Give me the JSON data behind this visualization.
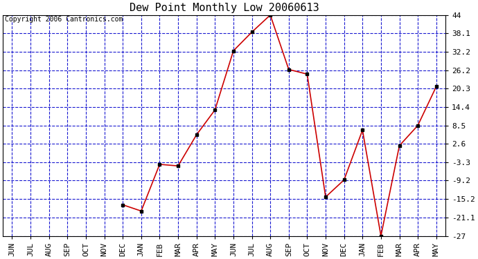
{
  "title": "Dew Point Monthly Low 20060613",
  "copyright": "Copyright 2006 Cantronics.com",
  "x_labels": [
    "JUN",
    "JUL",
    "AUG",
    "SEP",
    "OCT",
    "NOV",
    "DEC",
    "JAN",
    "FEB",
    "MAR",
    "APR",
    "MAY",
    "JUN",
    "JUL",
    "AUG",
    "SEP",
    "OCT",
    "NOV",
    "DEC",
    "JAN",
    "FEB",
    "MAR",
    "APR",
    "MAY"
  ],
  "y_values": [
    null,
    null,
    null,
    null,
    null,
    null,
    -17.0,
    -19.0,
    -4.0,
    -4.5,
    5.5,
    13.5,
    32.5,
    38.5,
    44.0,
    26.5,
    25.0,
    -14.5,
    -9.0,
    7.0,
    -27.0,
    2.0,
    8.5,
    21.0
  ],
  "ylim_min": -27.0,
  "ylim_max": 44.0,
  "yticks": [
    -27.0,
    -21.1,
    -15.2,
    -9.2,
    -3.3,
    2.6,
    8.5,
    14.4,
    20.3,
    26.2,
    32.2,
    38.1,
    44.0
  ],
  "line_color": "#cc0000",
  "marker_color": "#000000",
  "bg_color": "#ffffff",
  "plot_bg_color": "#ffffff",
  "grid_color": "#0000cc",
  "title_fontsize": 11,
  "copyright_fontsize": 7,
  "tick_fontsize": 8
}
